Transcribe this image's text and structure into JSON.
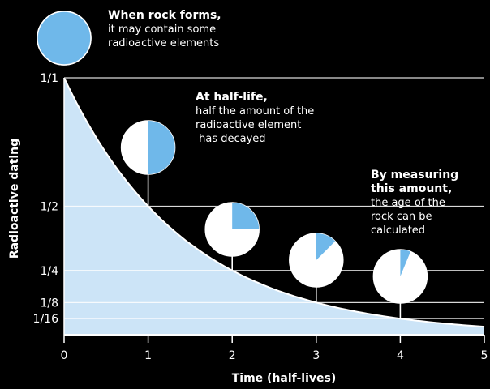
{
  "chart_data": {
    "type": "area",
    "title": "",
    "xlabel": "Time (half-lives)",
    "ylabel": "Radioactive dating",
    "x_ticks": [
      "0",
      "1",
      "2",
      "3",
      "4",
      "5"
    ],
    "y_ticks": [
      {
        "label": "1/1",
        "value": 1
      },
      {
        "label": "1/2",
        "value": 0.5
      },
      {
        "label": "1/4",
        "value": 0.25
      },
      {
        "label": "1/8",
        "value": 0.125
      },
      {
        "label": "1/16",
        "value": 0.0625
      }
    ],
    "xlim": [
      0,
      5
    ],
    "ylim": [
      0,
      1
    ],
    "curve": "exponential decay, y = 0.5^x",
    "pies": [
      {
        "half_lives": 0,
        "remaining": 1.0
      },
      {
        "half_lives": 1,
        "remaining": 0.5
      },
      {
        "half_lives": 2,
        "remaining": 0.25
      },
      {
        "half_lives": 3,
        "remaining": 0.125
      },
      {
        "half_lives": 4,
        "remaining": 0.0625
      }
    ],
    "colors": {
      "area": "#cce4f7",
      "curve": "#ffffff",
      "pie_fill": "#6fb8ea",
      "pie_empty": "#ffffff",
      "background": "#000000"
    }
  },
  "annotations": {
    "rock_forms": {
      "title": "When rock forms,",
      "lines": [
        "it may contain some",
        "radioactive elements"
      ]
    },
    "half_life": {
      "title": "At half-life,",
      "lines": [
        "half the amount of the",
        "radioactive element",
        " has decayed"
      ]
    },
    "measuring": {
      "title_lines": [
        "By measuring",
        "this amount,"
      ],
      "lines": [
        "the age of the",
        "rock can be",
        "calculated"
      ]
    }
  }
}
